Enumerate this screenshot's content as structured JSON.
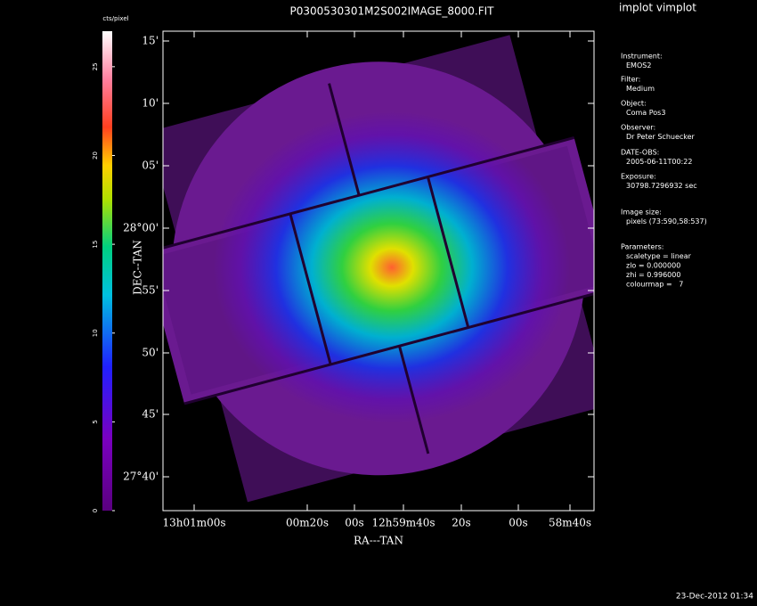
{
  "title": "P0300530301M2S002IMAGE_8000.FIT",
  "app_title": "implot vimplot",
  "colorbar": {
    "label": "cts/pixel",
    "range": [
      0,
      27
    ],
    "ticks": [
      0,
      5,
      10,
      15,
      20,
      25
    ]
  },
  "plot": {
    "x_label": "RA---TAN",
    "y_label": "DEC--TAN",
    "x_tick_labels": [
      "13h01m00s",
      "00m20s",
      "00s",
      "12h59m40s",
      "20s",
      "00s",
      "58m40s"
    ],
    "y_tick_labels": [
      "15'",
      "10'",
      "05'",
      "28°00'",
      "55'",
      "50'",
      "45'",
      "27°40'"
    ]
  },
  "sidebar": [
    {
      "label": "Instrument:",
      "lines": [
        "EMOS2"
      ]
    },
    {
      "label": "Filter:",
      "lines": [
        "Medium"
      ]
    },
    {
      "label": "Object:",
      "lines": [
        "Coma Pos3"
      ]
    },
    {
      "label": "Observer:",
      "lines": [
        "Dr Peter Schuecker"
      ]
    },
    {
      "label": "DATE-OBS:",
      "lines": [
        "2005-06-11T00:22"
      ]
    },
    {
      "label": "Exposure:",
      "lines": [
        "30798.7296932 sec"
      ]
    },
    {
      "label": "Image size:",
      "lines": [
        "pixels (73:590,58:537)"
      ]
    },
    {
      "label": "Parameters:",
      "lines": [
        "scaletype = linear",
        "zlo = 0.000000",
        "zhi = 0.996000",
        "colourmap =   7"
      ]
    }
  ],
  "footer": "23-Dec-2012 01:34"
}
